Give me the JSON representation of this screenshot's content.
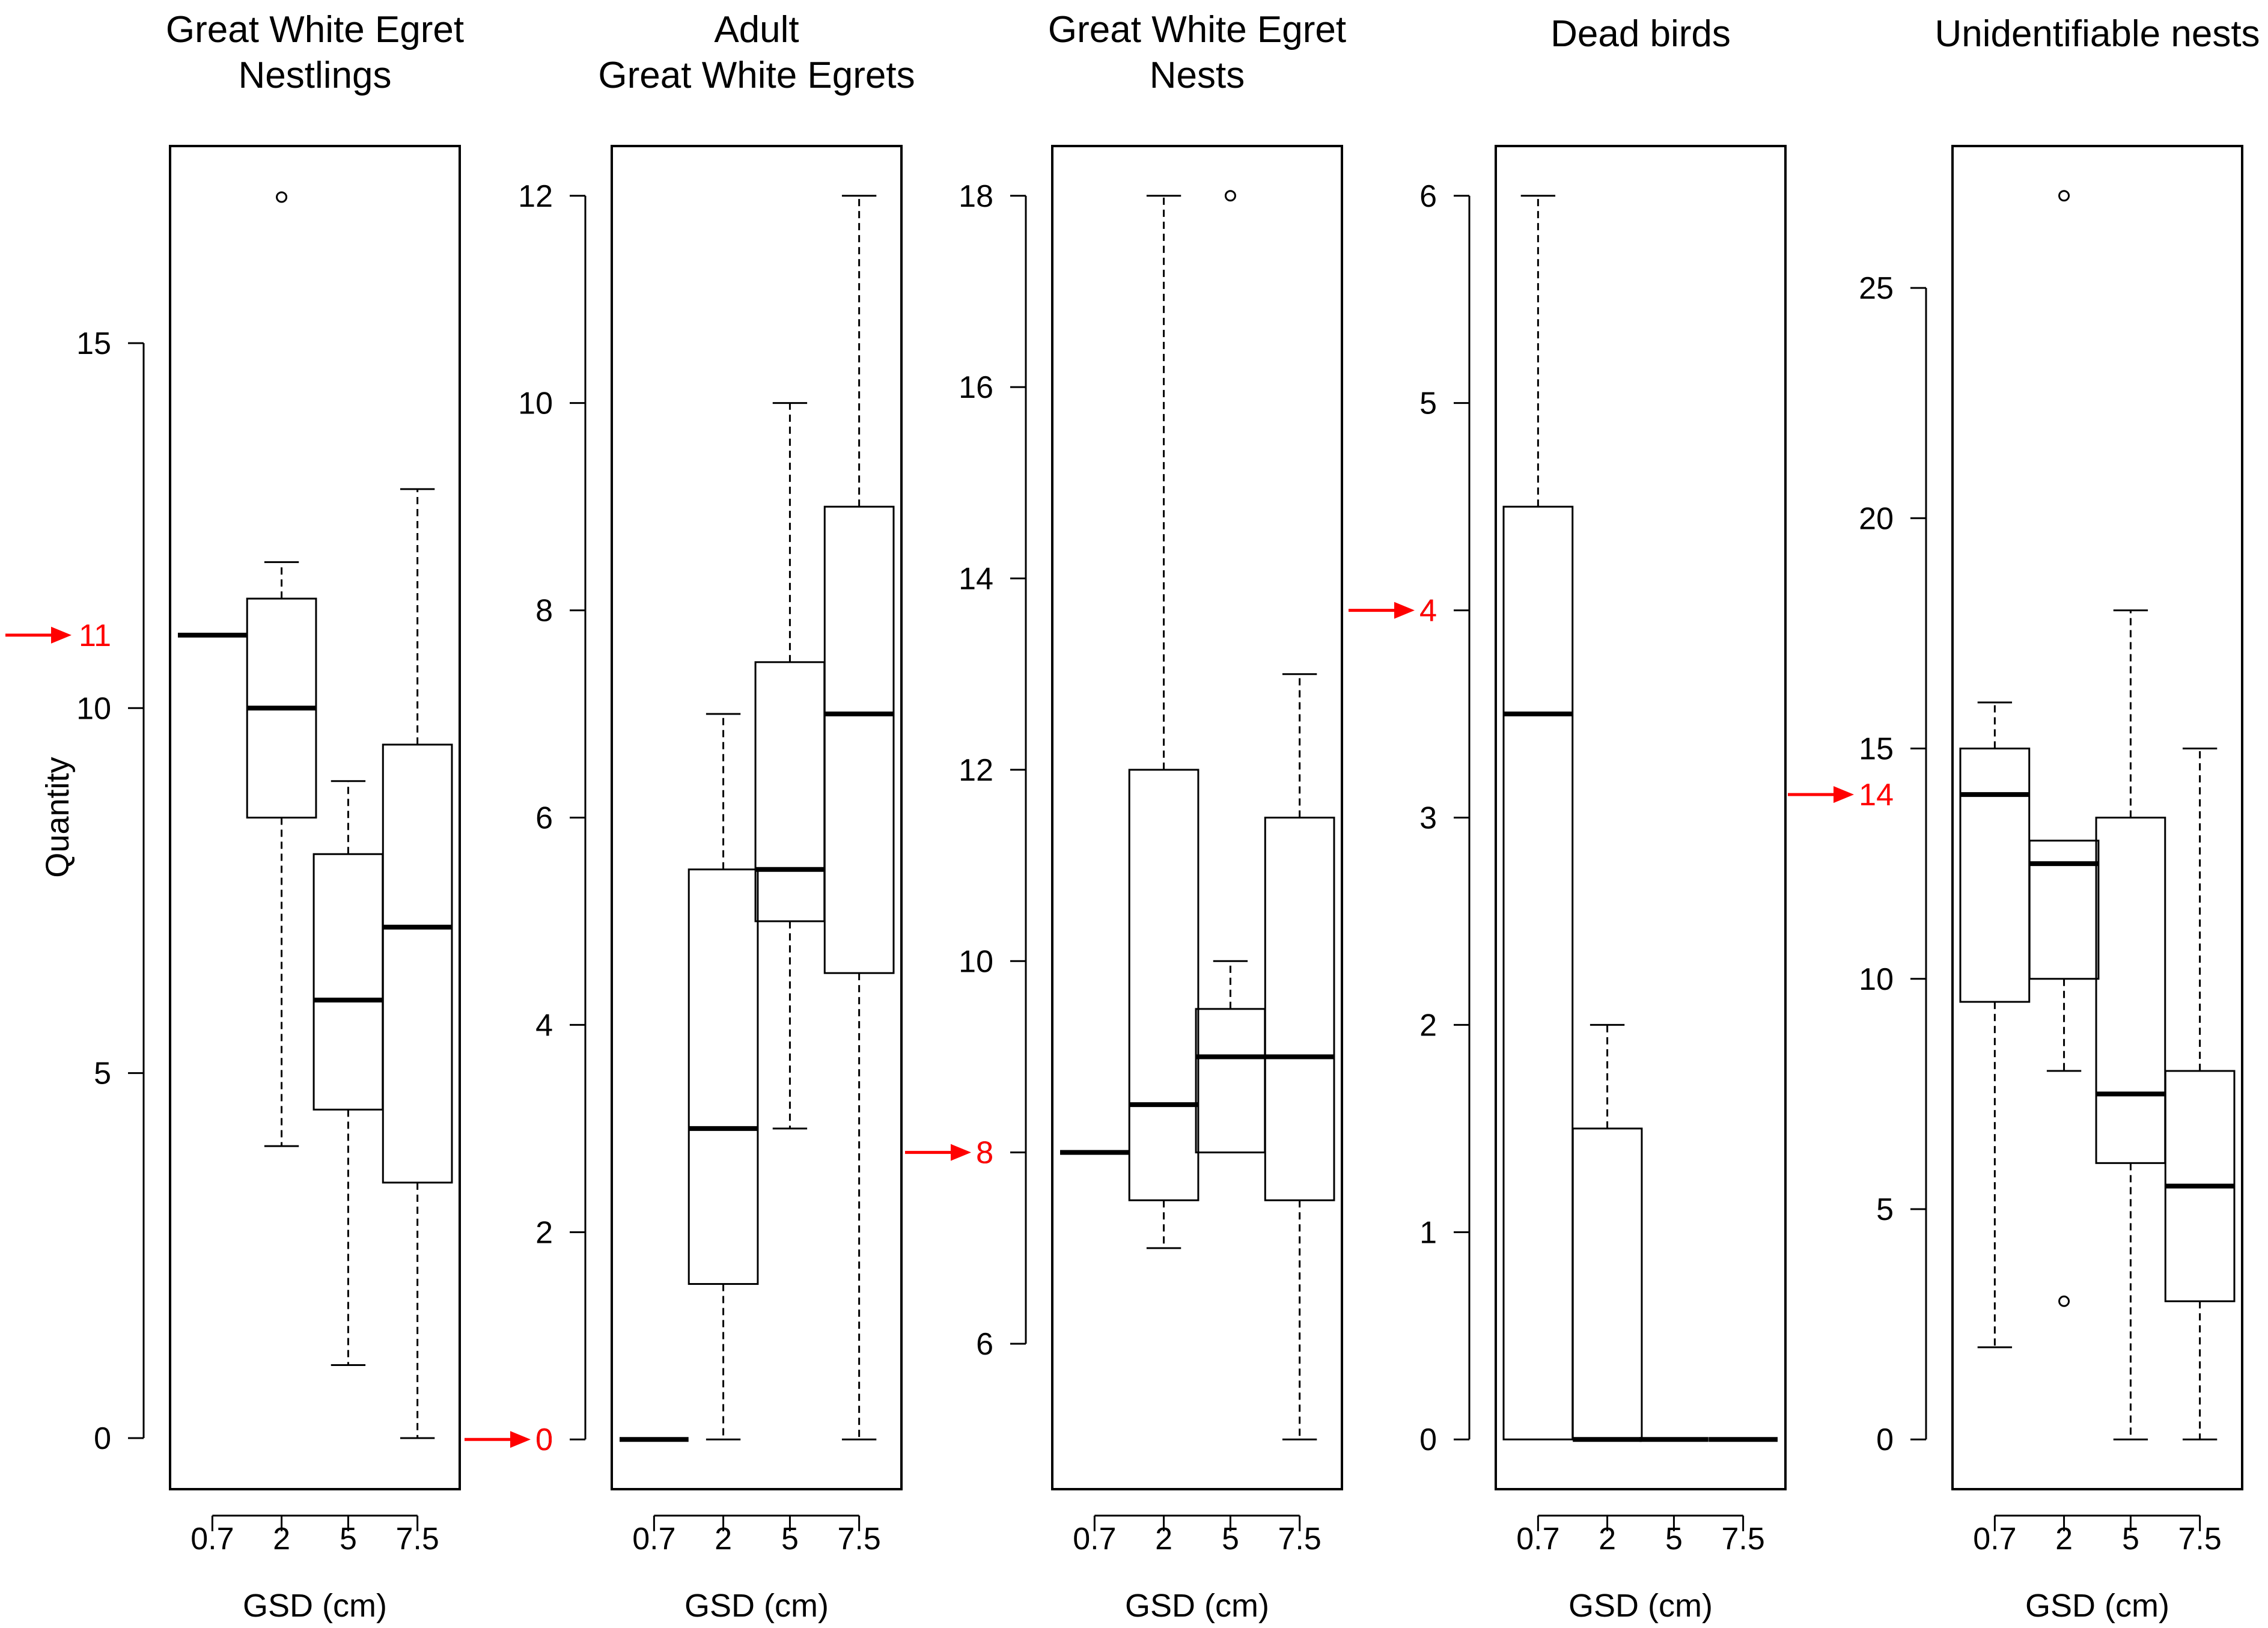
{
  "chart_data": [
    {
      "type": "boxplot",
      "title": [
        "Great White Egret",
        "Nestlings"
      ],
      "xlabel": "GSD (cm)",
      "ylabel": "Quantity",
      "categories": [
        "0.7",
        "2",
        "5",
        "7.5"
      ],
      "ylim": [
        -0.7,
        17.7
      ],
      "yticks": [
        0,
        5,
        10,
        15
      ],
      "boxes": [
        {
          "min": 11,
          "q1": 11,
          "median": 11,
          "q3": 11,
          "max": 11,
          "outliers": []
        },
        {
          "min": 4,
          "q1": 8.5,
          "median": 10,
          "q3": 11.5,
          "max": 12,
          "outliers": [
            17
          ]
        },
        {
          "min": 1,
          "q1": 4.5,
          "median": 6,
          "q3": 8,
          "max": 9,
          "outliers": []
        },
        {
          "min": 0,
          "q1": 3.5,
          "median": 7,
          "q3": 9.5,
          "max": 13,
          "outliers": []
        }
      ],
      "reference": {
        "value": 11,
        "label": "11"
      }
    },
    {
      "type": "boxplot",
      "title": [
        "Adult",
        "Great White Egrets"
      ],
      "xlabel": "GSD (cm)",
      "ylabel": "",
      "categories": [
        "0.7",
        "2",
        "5",
        "7.5"
      ],
      "ylim": [
        -0.48,
        12.48
      ],
      "yticks": [
        0,
        2,
        4,
        6,
        8,
        10,
        12
      ],
      "boxes": [
        {
          "min": 0,
          "q1": 0,
          "median": 0,
          "q3": 0,
          "max": 0,
          "outliers": []
        },
        {
          "min": 0,
          "q1": 1.5,
          "median": 3,
          "q3": 5.5,
          "max": 7,
          "outliers": []
        },
        {
          "min": 3,
          "q1": 5,
          "median": 5.5,
          "q3": 7.5,
          "max": 10,
          "outliers": []
        },
        {
          "min": 0,
          "q1": 4.5,
          "median": 7,
          "q3": 9,
          "max": 12,
          "outliers": []
        }
      ],
      "reference": {
        "value": 0,
        "label": "0"
      }
    },
    {
      "type": "boxplot",
      "title": [
        "Great White Egret",
        "Nests"
      ],
      "xlabel": "GSD (cm)",
      "ylabel": "",
      "categories": [
        "0.7",
        "2",
        "5",
        "7.5"
      ],
      "ylim": [
        4.48,
        18.52
      ],
      "yticks": [
        6,
        8,
        10,
        12,
        14,
        16,
        18
      ],
      "boxes": [
        {
          "min": 8,
          "q1": 8,
          "median": 8,
          "q3": 8,
          "max": 8,
          "outliers": []
        },
        {
          "min": 7,
          "q1": 7.5,
          "median": 8.5,
          "q3": 12,
          "max": 18,
          "outliers": []
        },
        {
          "min": 8,
          "q1": 8,
          "median": 9,
          "q3": 9.5,
          "max": 10,
          "outliers": [
            18
          ]
        },
        {
          "min": 5,
          "q1": 7.5,
          "median": 9,
          "q3": 11.5,
          "max": 13,
          "outliers": []
        }
      ],
      "reference": {
        "value": 8,
        "label": "8"
      }
    },
    {
      "type": "boxplot",
      "title": [
        "Dead birds"
      ],
      "xlabel": "GSD (cm)",
      "ylabel": "",
      "categories": [
        "0.7",
        "2",
        "5",
        "7.5"
      ],
      "ylim": [
        -0.24,
        6.24
      ],
      "yticks": [
        0,
        1,
        2,
        3,
        4,
        5,
        6
      ],
      "boxes": [
        {
          "min": 0,
          "q1": 0,
          "median": 3.5,
          "q3": 4.5,
          "max": 6,
          "outliers": []
        },
        {
          "min": 0,
          "q1": 0,
          "median": 0,
          "q3": 1.5,
          "max": 2,
          "outliers": []
        },
        {
          "min": 0,
          "q1": 0,
          "median": 0,
          "q3": 0,
          "max": 0,
          "outliers": []
        },
        {
          "min": 0,
          "q1": 0,
          "median": 0,
          "q3": 0,
          "max": 0,
          "outliers": []
        }
      ],
      "reference": {
        "value": 4,
        "label": "4"
      }
    },
    {
      "type": "boxplot",
      "title": [
        "Unidentifiable nests"
      ],
      "xlabel": "GSD (cm)",
      "ylabel": "",
      "categories": [
        "0.7",
        "2",
        "5",
        "7.5"
      ],
      "ylim": [
        -1.08,
        28.08
      ],
      "yticks": [
        0,
        5,
        10,
        15,
        20,
        25
      ],
      "boxes": [
        {
          "min": 2,
          "q1": 9.5,
          "median": 14,
          "q3": 15,
          "max": 16,
          "outliers": []
        },
        {
          "min": 8,
          "q1": 10,
          "median": 12.5,
          "q3": 13,
          "max": 13,
          "outliers": [
            27,
            3
          ]
        },
        {
          "min": 0,
          "q1": 6,
          "median": 7.5,
          "q3": 13.5,
          "max": 18,
          "outliers": []
        },
        {
          "min": 0,
          "q1": 3,
          "median": 5.5,
          "q3": 8,
          "max": 15,
          "outliers": []
        }
      ],
      "reference": {
        "value": 14,
        "label": "14"
      }
    }
  ]
}
